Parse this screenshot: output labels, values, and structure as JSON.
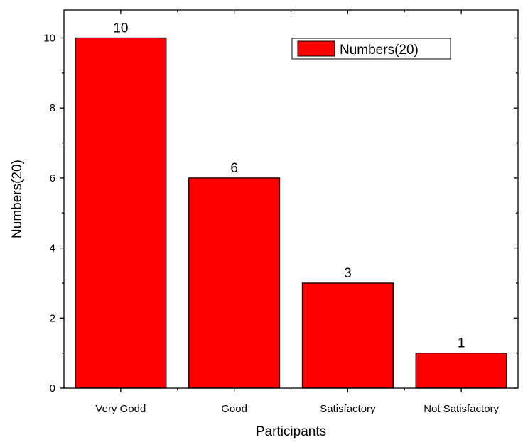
{
  "chart_data": {
    "type": "bar",
    "title": "",
    "xlabel": "Participants",
    "ylabel": "Numbers(20)",
    "categories": [
      "Very Godd",
      "Good",
      "Satisfactory",
      "Not Satisfactory"
    ],
    "series": [
      {
        "name": "Numbers(20)",
        "values": [
          10,
          6,
          3,
          1
        ],
        "color": "#ff0000"
      }
    ],
    "data_labels": [
      "10",
      "6",
      "3",
      "1"
    ],
    "ylim": [
      0,
      10.8
    ],
    "yticks": [
      0,
      2,
      4,
      6,
      8,
      10
    ],
    "y_minor_step": 1,
    "grid": false,
    "legend_position": "top-right"
  }
}
